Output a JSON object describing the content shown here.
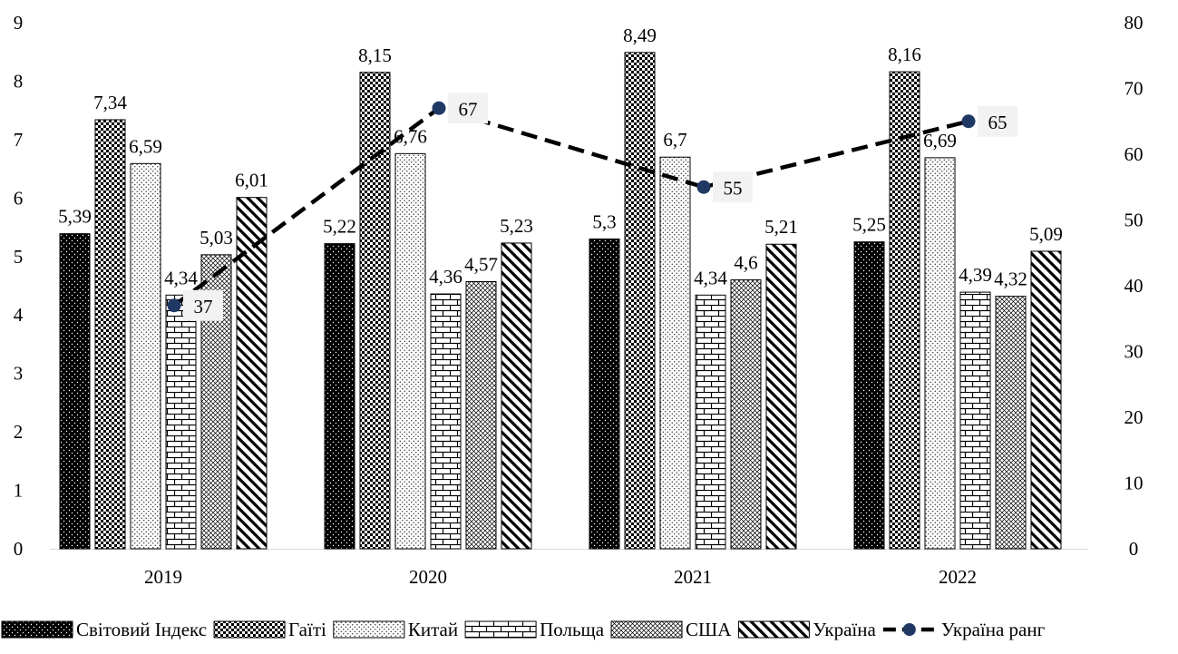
{
  "chart_data": {
    "type": "bar",
    "categories": [
      "2019",
      "2020",
      "2021",
      "2022"
    ],
    "series": [
      {
        "name": "Світовий Індекс",
        "values": [
          5.39,
          5.22,
          5.3,
          5.25
        ],
        "labels": [
          "5,39",
          "5,22",
          "5,3",
          "5,25"
        ],
        "pattern": "dots-dark"
      },
      {
        "name": "Гаїті",
        "values": [
          7.34,
          8.15,
          8.49,
          8.16
        ],
        "labels": [
          "7,34",
          "8,15",
          "8,49",
          "8,16"
        ],
        "pattern": "checker"
      },
      {
        "name": "Китай",
        "values": [
          6.59,
          6.76,
          6.7,
          6.69
        ],
        "labels": [
          "6,59",
          "6,76",
          "6,7",
          "6,69"
        ],
        "pattern": "dots-light"
      },
      {
        "name": "Польща",
        "values": [
          4.34,
          4.36,
          4.34,
          4.39
        ],
        "labels": [
          "4,34",
          "4,36",
          "4,34",
          "4,39"
        ],
        "pattern": "bricks"
      },
      {
        "name": "США",
        "values": [
          5.03,
          4.57,
          4.6,
          4.32
        ],
        "labels": [
          "5,03",
          "4,57",
          "4,6",
          "4,32"
        ],
        "pattern": "crosshatch"
      },
      {
        "name": "Україна",
        "values": [
          6.01,
          5.23,
          5.21,
          5.09
        ],
        "labels": [
          "6,01",
          "5,23",
          "5,21",
          "5,09"
        ],
        "pattern": "diagonal"
      }
    ],
    "line_series": {
      "name": "Україна ранг",
      "values": [
        37,
        67,
        55,
        65
      ],
      "labels": [
        "37",
        "67",
        "55",
        "65"
      ],
      "axis": "right",
      "color": "#1f3864"
    },
    "y_left": {
      "min": 0,
      "max": 9,
      "ticks": [
        "0",
        "1",
        "2",
        "3",
        "4",
        "5",
        "6",
        "7",
        "8",
        "9"
      ]
    },
    "y_right": {
      "min": 0,
      "max": 80,
      "ticks": [
        "0",
        "10",
        "20",
        "30",
        "40",
        "50",
        "60",
        "70",
        "80"
      ]
    },
    "grid": false,
    "legend_position": "bottom"
  }
}
